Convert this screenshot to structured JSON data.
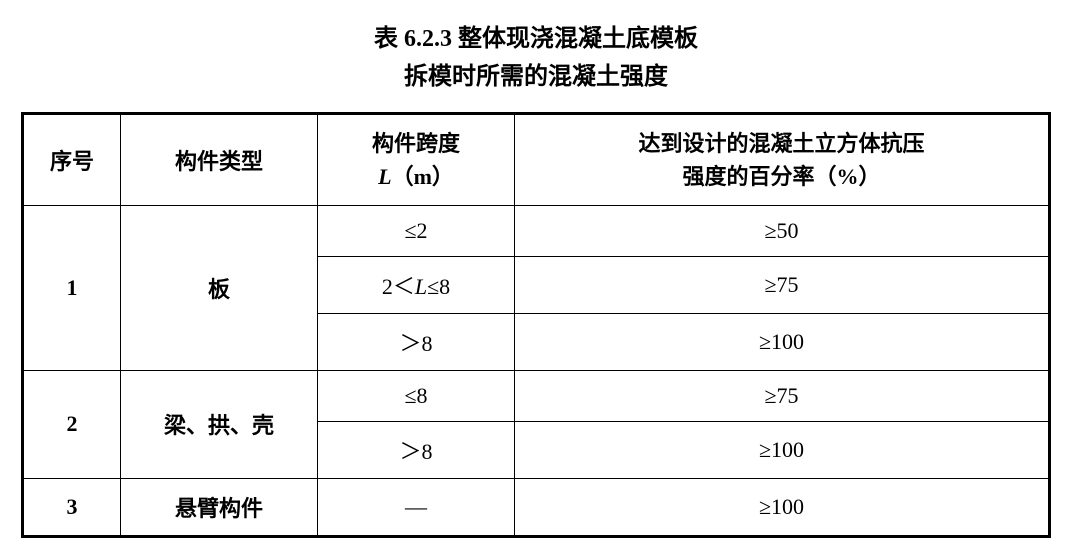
{
  "title": {
    "line1": "表 6.2.3  整体现浇混凝土底模板",
    "line2": "拆模时所需的混凝土强度"
  },
  "headers": {
    "seq": "序号",
    "type": "构件类型",
    "span_line1": "构件跨度",
    "span_line2_prefix": "L",
    "span_line2_unit": "（m）",
    "percent_line1": "达到设计的混凝土立方体抗压",
    "percent_line2": "强度的百分率（%）"
  },
  "rows": [
    {
      "seq": "1",
      "type": "板",
      "spans": [
        {
          "span": "≤2",
          "percent": "≥50"
        },
        {
          "span": "2＜L≤8",
          "percent": "≥75",
          "hasItalic": true
        },
        {
          "span": "＞8",
          "percent": "≥100"
        }
      ]
    },
    {
      "seq": "2",
      "type": "梁、拱、壳",
      "spans": [
        {
          "span": "≤8",
          "percent": "≥75"
        },
        {
          "span": "＞8",
          "percent": "≥100"
        }
      ]
    },
    {
      "seq": "3",
      "type": "悬臂构件",
      "spans": [
        {
          "span": "—",
          "percent": "≥100"
        }
      ]
    }
  ],
  "style": {
    "background_color": "#ffffff",
    "text_color": "#000000",
    "border_color": "#000000",
    "outer_border_width": 3,
    "inner_border_width": 1.5,
    "title_fontsize": 24,
    "cell_fontsize": 22,
    "font_family": "SimSun, 宋体, serif"
  }
}
